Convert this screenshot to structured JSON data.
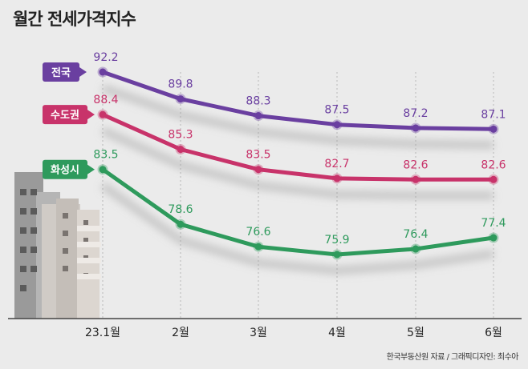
{
  "title": "월간 전세가격지수",
  "source": "한국부동산원 자료 / 그래픽디자인: 최수아",
  "chart_data": {
    "type": "line",
    "title": "월간 전세가격지수",
    "categories": [
      "23.1월",
      "2월",
      "3월",
      "4월",
      "5월",
      "6월"
    ],
    "series": [
      {
        "name": "전국",
        "color": "#6a3fa0",
        "values": [
          92.2,
          89.8,
          88.3,
          87.5,
          87.2,
          87.1
        ]
      },
      {
        "name": "수도권",
        "color": "#c8336a",
        "values": [
          88.4,
          85.3,
          83.5,
          82.7,
          82.6,
          82.6
        ]
      },
      {
        "name": "화성시",
        "color": "#2e9a5c",
        "values": [
          83.5,
          78.6,
          76.6,
          75.9,
          76.4,
          77.4
        ]
      }
    ],
    "ylim": [
      73,
      93
    ]
  }
}
